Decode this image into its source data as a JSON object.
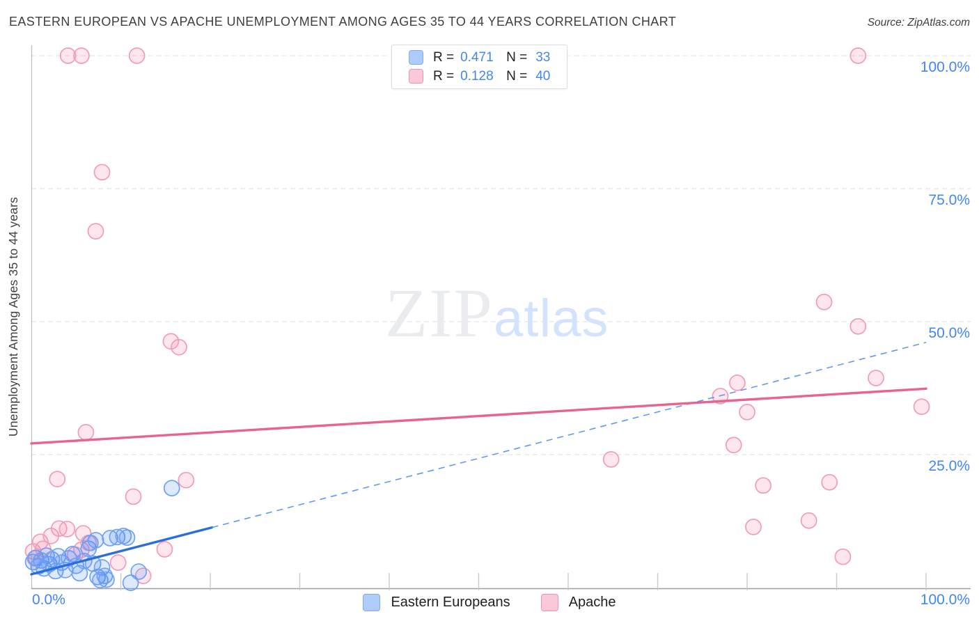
{
  "header": {
    "source": "Source: ZipAtlas.com"
  },
  "watermark": {
    "zip": "ZIP",
    "atlas": "atlas"
  },
  "legend_box": {
    "r_label": "R =",
    "n_label": "N ="
  },
  "colors": {
    "axis_label_blue": "#4285f4",
    "title_text": "#3c4043",
    "gridline": "#dcdee1",
    "axis_line": "#b9bdc2",
    "eastern_europeans_swatch": "#aecbfa",
    "apache_swatch": "#fbc8d9",
    "eastern_europeans_trend": "#2a6ddb",
    "apache_trend": "#e8638f"
  },
  "chart_data": {
    "type": "scatter",
    "title": "EASTERN EUROPEAN VS APACHE UNEMPLOYMENT AMONG AGES 35 TO 44 YEARS CORRELATION CHART",
    "xlabel": "",
    "ylabel": "Unemployment Among Ages 35 to 44 years",
    "xlim": [
      0,
      100
    ],
    "ylim": [
      0,
      102
    ],
    "grid": "horizontal-dashed",
    "x_axis_ticks": [
      {
        "value": 0,
        "label": "0.0%"
      },
      {
        "value": 100,
        "label": "100.0%"
      }
    ],
    "y_axis_ticks": [
      {
        "value": 100,
        "label": "100.0%"
      },
      {
        "value": 75,
        "label": "75.0%"
      },
      {
        "value": 50,
        "label": "50.0%"
      },
      {
        "value": 25,
        "label": "25.0%"
      }
    ],
    "series": [
      {
        "id": "eastern-europeans",
        "name": "Eastern Europeans",
        "R": 0.471,
        "N": 33,
        "stroke": "#6fa0f7",
        "fill": "rgba(66,133,244,0.18)",
        "trend": {
          "x0": 0,
          "y0": 2.5,
          "x1": 100,
          "y1": 46.1,
          "solid_to_x": 20.2,
          "line_color": "#2a6ddb",
          "projection_dashed": true
        },
        "points": [
          [
            0.2,
            4.8
          ],
          [
            0.5,
            5.6
          ],
          [
            0.8,
            4.0
          ],
          [
            1.1,
            5.1
          ],
          [
            1.4,
            3.6
          ],
          [
            1.7,
            6.0
          ],
          [
            2.0,
            4.4
          ],
          [
            2.3,
            5.3
          ],
          [
            2.7,
            3.1
          ],
          [
            3.0,
            5.9
          ],
          [
            3.4,
            4.7
          ],
          [
            3.8,
            3.3
          ],
          [
            4.2,
            5.5
          ],
          [
            4.6,
            6.3
          ],
          [
            5.0,
            4.1
          ],
          [
            5.4,
            2.7
          ],
          [
            5.9,
            5.0
          ],
          [
            6.4,
            7.3
          ],
          [
            6.6,
            8.4
          ],
          [
            6.9,
            4.5
          ],
          [
            7.2,
            8.9
          ],
          [
            7.4,
            2.0
          ],
          [
            7.7,
            1.4
          ],
          [
            7.9,
            3.8
          ],
          [
            8.2,
            2.2
          ],
          [
            8.4,
            1.5
          ],
          [
            8.8,
            9.3
          ],
          [
            9.6,
            9.5
          ],
          [
            10.3,
            9.7
          ],
          [
            10.7,
            9.4
          ],
          [
            11.1,
            0.9
          ],
          [
            12.0,
            3.0
          ],
          [
            15.7,
            18.7
          ]
        ]
      },
      {
        "id": "apache",
        "name": "Apache",
        "R": 0.128,
        "N": 40,
        "stroke": "#f29bb8",
        "fill": "rgba(244,143,177,0.22)",
        "trend": {
          "x0": 0,
          "y0": 27.1,
          "x1": 100,
          "y1": 37.4,
          "solid_to_x": 100,
          "line_color": "#e8638f",
          "projection_dashed": false
        },
        "points": [
          [
            0.2,
            6.8
          ],
          [
            0.4,
            5.5
          ],
          [
            1.0,
            8.6
          ],
          [
            1.3,
            7.3
          ],
          [
            2.2,
            9.7
          ],
          [
            2.9,
            20.4
          ],
          [
            3.1,
            11.1
          ],
          [
            4.0,
            11.0
          ],
          [
            4.1,
            100
          ],
          [
            4.9,
            6.2
          ],
          [
            5.6,
            100
          ],
          [
            5.6,
            7.1
          ],
          [
            5.8,
            10.2
          ],
          [
            6.1,
            29.2
          ],
          [
            6.4,
            8.4
          ],
          [
            7.2,
            67.0
          ],
          [
            7.9,
            78.1
          ],
          [
            9.7,
            4.7
          ],
          [
            11.4,
            17.1
          ],
          [
            11.8,
            100
          ],
          [
            12.5,
            2.2
          ],
          [
            14.9,
            7.2
          ],
          [
            15.6,
            46.3
          ],
          [
            16.5,
            45.2
          ],
          [
            17.3,
            20.2
          ],
          [
            64.8,
            24.1
          ],
          [
            77.0,
            36.0
          ],
          [
            78.5,
            26.8
          ],
          [
            78.9,
            38.5
          ],
          [
            80.0,
            33.0
          ],
          [
            80.7,
            11.4
          ],
          [
            81.8,
            19.2
          ],
          [
            86.9,
            12.6
          ],
          [
            88.6,
            53.7
          ],
          [
            89.2,
            19.8
          ],
          [
            90.7,
            5.8
          ],
          [
            92.4,
            49.1
          ],
          [
            92.4,
            100
          ],
          [
            94.4,
            39.4
          ],
          [
            99.5,
            34.0
          ]
        ]
      }
    ]
  }
}
